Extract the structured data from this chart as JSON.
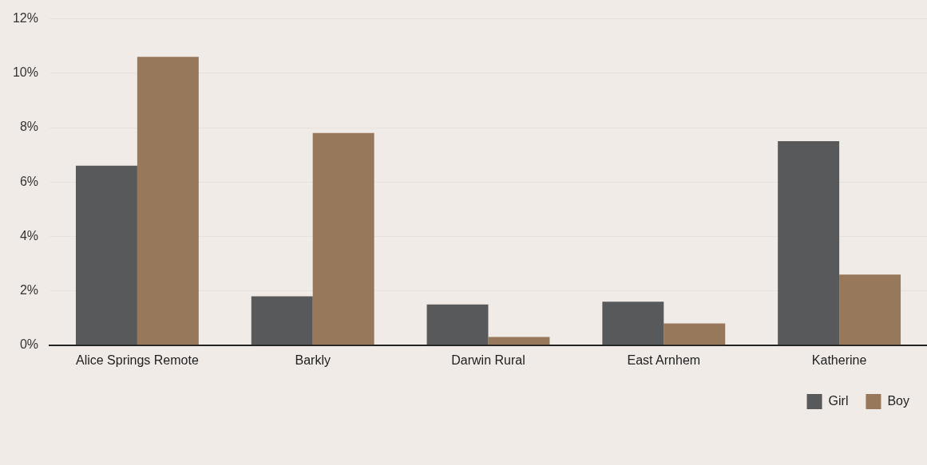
{
  "chart_data": {
    "type": "bar",
    "categories": [
      "Alice Springs Remote",
      "Barkly",
      "Darwin Rural",
      "East Arnhem",
      "Katherine"
    ],
    "series": [
      {
        "name": "Girl",
        "color": "#58595b",
        "values": [
          6.6,
          1.8,
          1.5,
          1.6,
          7.5
        ]
      },
      {
        "name": "Boy",
        "color": "#97785b",
        "values": [
          10.6,
          7.8,
          0.3,
          0.8,
          2.6
        ]
      }
    ],
    "ylim": [
      0,
      12
    ],
    "yticks": [
      {
        "value": 0,
        "label": "0%"
      },
      {
        "value": 2,
        "label": "2%"
      },
      {
        "value": 4,
        "label": "4%"
      },
      {
        "value": 6,
        "label": "6%"
      },
      {
        "value": 8,
        "label": "8%"
      },
      {
        "value": 10,
        "label": "10%"
      },
      {
        "value": 12,
        "label": "12%"
      }
    ],
    "grid": "y",
    "legend": "bottom right"
  }
}
